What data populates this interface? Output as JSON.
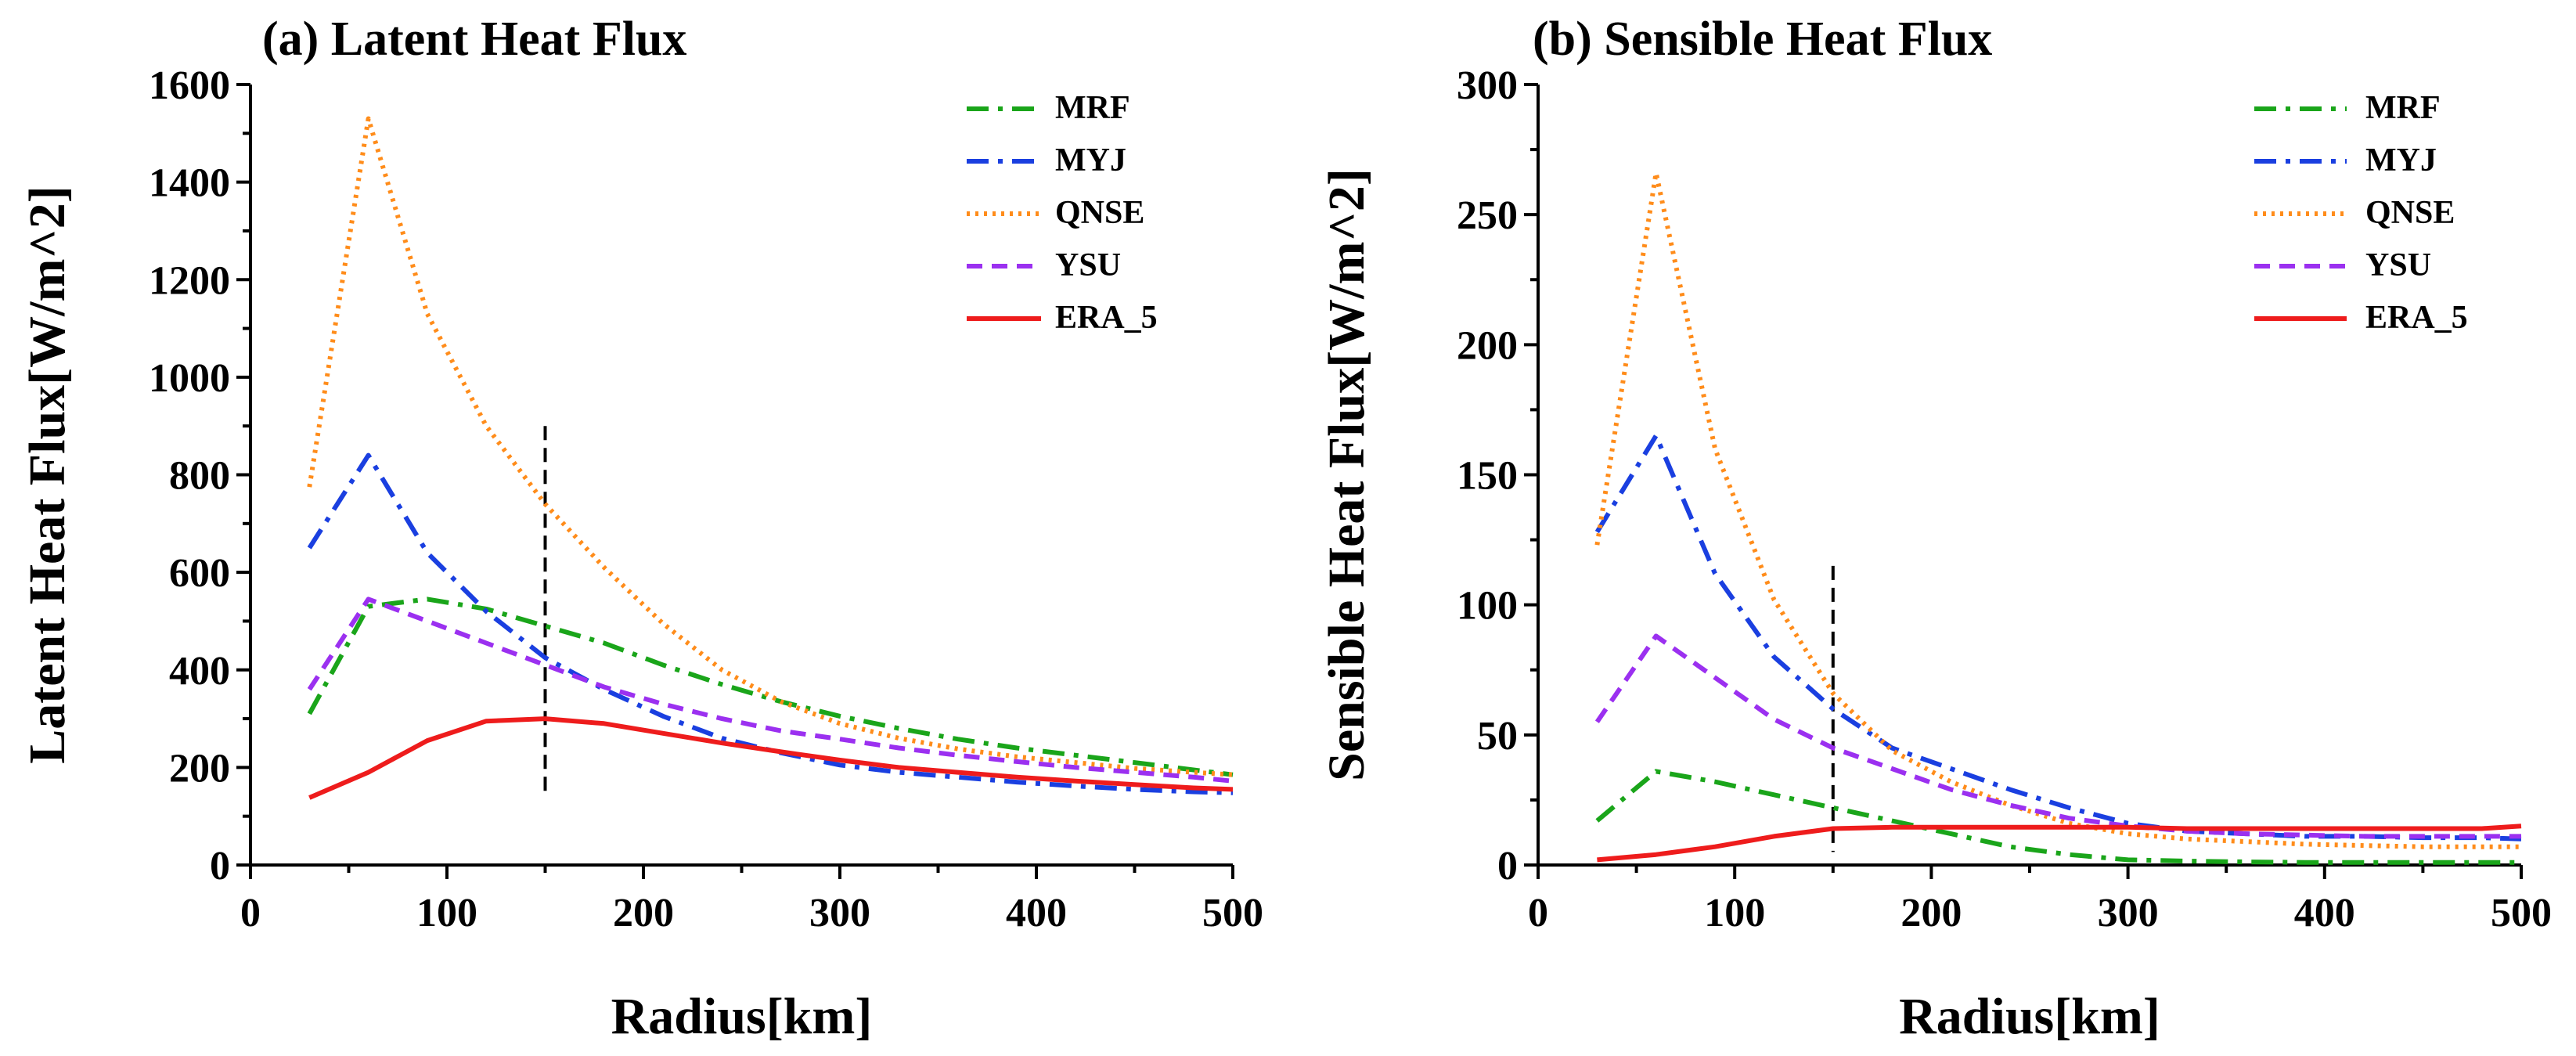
{
  "chart_data": [
    {
      "type": "line",
      "title": "(a) Latent Heat Flux",
      "xlabel": "Radius[km]",
      "ylabel": "Latent Heat Flux[W/m^2]",
      "xlim": [
        0,
        500
      ],
      "ylim": [
        0,
        1600
      ],
      "xticks": [
        0,
        100,
        200,
        300,
        400,
        500
      ],
      "yticks": [
        0,
        200,
        400,
        600,
        800,
        1000,
        1200,
        1400,
        1600
      ],
      "grid": false,
      "legend_position": "top-right",
      "reference_line": {
        "x": 150,
        "y_from": 150,
        "y_to": 900
      },
      "series": [
        {
          "name": "MRF",
          "color": "#1aa51a",
          "dash": "28 12 6 12",
          "x": [
            30,
            60,
            90,
            120,
            150,
            180,
            210,
            240,
            270,
            300,
            330,
            360,
            390,
            420,
            450,
            480,
            500
          ],
          "y": [
            310,
            530,
            545,
            525,
            490,
            455,
            410,
            370,
            335,
            305,
            280,
            258,
            240,
            225,
            210,
            195,
            185
          ]
        },
        {
          "name": "MYJ",
          "color": "#1a3fe0",
          "dash": "28 12 6 12",
          "x": [
            30,
            60,
            90,
            120,
            150,
            180,
            210,
            240,
            270,
            300,
            330,
            360,
            390,
            420,
            450,
            480,
            500
          ],
          "y": [
            650,
            840,
            640,
            520,
            425,
            360,
            305,
            260,
            230,
            205,
            190,
            180,
            170,
            162,
            155,
            150,
            148
          ]
        },
        {
          "name": "QNSE",
          "color": "#ff8c1a",
          "dash": "4 7",
          "x": [
            30,
            60,
            90,
            120,
            150,
            180,
            210,
            240,
            270,
            300,
            330,
            360,
            390,
            420,
            450,
            480,
            500
          ],
          "y": [
            775,
            1530,
            1130,
            900,
            740,
            610,
            495,
            400,
            335,
            290,
            260,
            238,
            222,
            210,
            198,
            190,
            185
          ]
        },
        {
          "name": "YSU",
          "color": "#9b30f0",
          "dash": "20 12",
          "x": [
            30,
            60,
            90,
            120,
            150,
            180,
            210,
            240,
            270,
            300,
            330,
            360,
            390,
            420,
            450,
            480,
            500
          ],
          "y": [
            360,
            545,
            500,
            455,
            410,
            365,
            330,
            300,
            275,
            258,
            240,
            225,
            212,
            200,
            190,
            180,
            172
          ]
        },
        {
          "name": "ERA_5",
          "color": "#ee1c1c",
          "dash": "",
          "x": [
            30,
            60,
            90,
            120,
            150,
            180,
            210,
            240,
            270,
            300,
            330,
            360,
            390,
            420,
            450,
            480,
            500
          ],
          "y": [
            138,
            190,
            255,
            295,
            300,
            290,
            270,
            250,
            232,
            215,
            200,
            190,
            180,
            172,
            165,
            158,
            155
          ]
        }
      ]
    },
    {
      "type": "line",
      "title": "(b) Sensible Heat Flux",
      "xlabel": "Radius[km]",
      "ylabel": "Sensible Heat Flux[W/m^2]",
      "xlim": [
        0,
        500
      ],
      "ylim": [
        0,
        300
      ],
      "xticks": [
        0,
        100,
        200,
        300,
        400,
        500
      ],
      "yticks": [
        0,
        50,
        100,
        150,
        200,
        250,
        300
      ],
      "grid": false,
      "legend_position": "top-right",
      "reference_line": {
        "x": 150,
        "y_from": 5,
        "y_to": 115
      },
      "series": [
        {
          "name": "MRF",
          "color": "#1aa51a",
          "dash": "28 12 6 12",
          "x": [
            30,
            60,
            90,
            120,
            150,
            180,
            210,
            240,
            270,
            300,
            330,
            360,
            390,
            420,
            450,
            480,
            500
          ],
          "y": [
            17,
            36,
            32,
            27,
            22,
            17,
            12,
            7,
            4,
            2,
            1.5,
            1.2,
            1,
            1,
            1,
            1,
            1
          ]
        },
        {
          "name": "MYJ",
          "color": "#1a3fe0",
          "dash": "28 12 6 12",
          "x": [
            30,
            60,
            90,
            120,
            150,
            180,
            210,
            240,
            270,
            300,
            330,
            360,
            390,
            420,
            450,
            480,
            500
          ],
          "y": [
            128,
            165,
            112,
            80,
            60,
            45,
            37,
            29,
            22,
            16,
            13,
            12,
            11,
            11,
            10.5,
            10.5,
            10
          ]
        },
        {
          "name": "QNSE",
          "color": "#ff8c1a",
          "dash": "4 7",
          "x": [
            30,
            60,
            90,
            120,
            150,
            180,
            210,
            240,
            270,
            300,
            330,
            360,
            390,
            420,
            450,
            480,
            500
          ],
          "y": [
            123,
            266,
            160,
            102,
            66,
            44,
            32,
            23,
            16,
            12,
            10,
            9,
            8,
            7.5,
            7,
            7,
            7
          ]
        },
        {
          "name": "YSU",
          "color": "#9b30f0",
          "dash": "20 12",
          "x": [
            30,
            60,
            90,
            120,
            150,
            180,
            210,
            240,
            270,
            300,
            330,
            360,
            390,
            420,
            450,
            480,
            500
          ],
          "y": [
            55,
            88,
            72,
            56,
            45,
            37,
            29,
            23,
            18,
            15,
            13,
            12,
            11.5,
            11,
            11,
            11,
            11
          ]
        },
        {
          "name": "ERA_5",
          "color": "#ee1c1c",
          "dash": "",
          "x": [
            30,
            60,
            90,
            120,
            150,
            180,
            210,
            240,
            270,
            300,
            330,
            360,
            390,
            420,
            450,
            480,
            500
          ],
          "y": [
            2,
            4,
            7,
            11,
            14,
            14.5,
            14.5,
            14.5,
            14.5,
            14.5,
            14,
            14,
            14,
            14,
            14,
            14,
            15
          ]
        }
      ]
    }
  ]
}
